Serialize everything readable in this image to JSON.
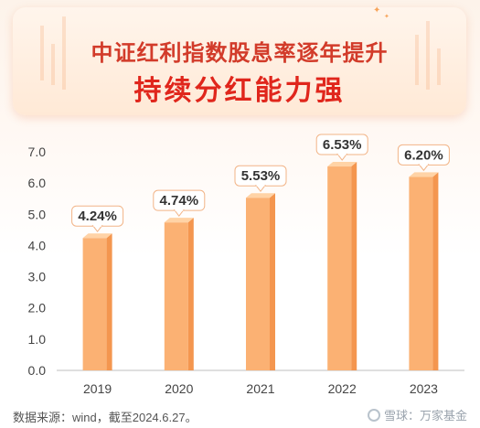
{
  "header": {
    "title_line1": "中证红利指数股息率逐年提升",
    "title_line2": "持续分红能力强"
  },
  "chart_data": {
    "type": "bar",
    "categories": [
      "2019",
      "2020",
      "2021",
      "2022",
      "2023"
    ],
    "values": [
      4.24,
      4.74,
      5.53,
      6.53,
      6.2
    ],
    "data_labels": [
      "4.24%",
      "4.74%",
      "5.53%",
      "6.53%",
      "6.20%"
    ],
    "y_ticks": [
      "0.0",
      "1.0",
      "2.0",
      "3.0",
      "4.0",
      "5.0",
      "6.0",
      "7.0"
    ],
    "ylim": [
      0,
      7
    ],
    "grid": false,
    "colors": {
      "bar_top": "#ffd3a6",
      "bar_front": "#fbb173",
      "bar_side": "#f4964f",
      "axis": "#bfbfbf",
      "label_text": "#333333",
      "label_border": "#f2b487"
    }
  },
  "footer": {
    "source": "数据来源：wind，截至2024.6.27。",
    "watermark": "雪球：万家基金"
  }
}
